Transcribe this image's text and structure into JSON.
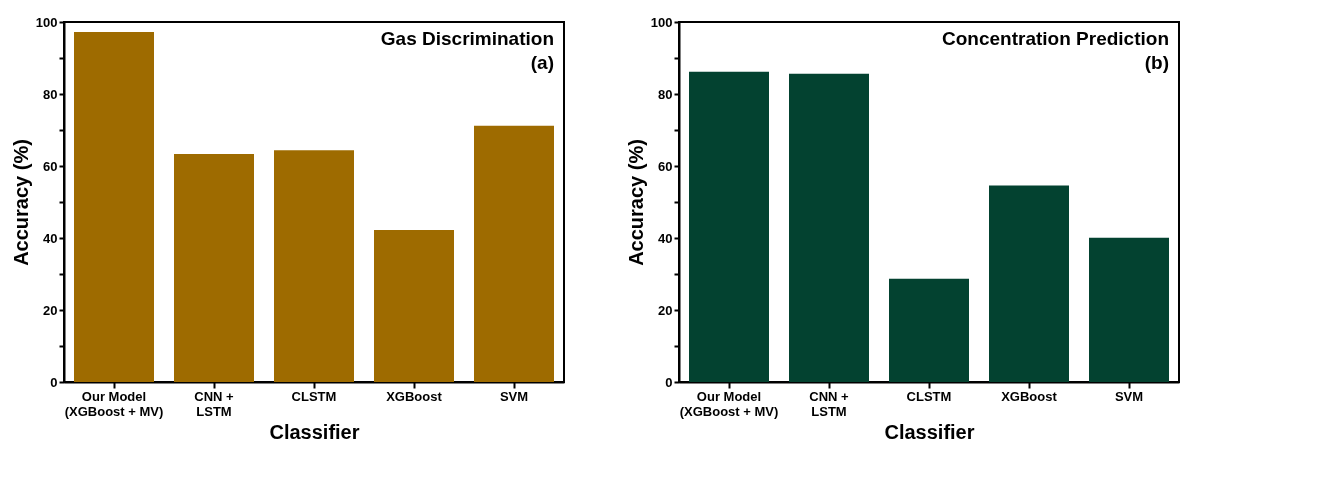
{
  "chart_data": [
    {
      "type": "bar",
      "title": "Gas Discrimination",
      "annotations": [
        "(a)"
      ],
      "xlabel": "Classifier",
      "ylabel": "Accuracy (%)",
      "categories": [
        "Our Model\n(XGBoost + MV)",
        "CNN +\nLSTM",
        "CLSTM",
        "XGBoost",
        "SVM"
      ],
      "values": [
        97.2,
        63.3,
        64.4,
        42.2,
        71.2
      ],
      "color": "#9e6b00",
      "ylim": [
        0,
        100
      ],
      "yticks": [
        0,
        {
          "value": 10,
          "label": null
        },
        20,
        {
          "value": 30,
          "label": null
        },
        40,
        {
          "value": 50,
          "label": null
        },
        60,
        {
          "value": 70,
          "label": null
        },
        80,
        {
          "value": 90,
          "label": null
        },
        100
      ],
      "grid": false
    },
    {
      "type": "bar",
      "title": "Concentration Prediction",
      "annotations": [
        "(b)"
      ],
      "xlabel": "Classifier",
      "ylabel": "Accuracy (%)",
      "categories": [
        "Our Model\n(XGBoost + MV)",
        "CNN +\nLSTM",
        "CLSTM",
        "XGBoost",
        "SVM"
      ],
      "values": [
        86.2,
        85.6,
        28.7,
        54.6,
        40.1
      ],
      "color": "#034230",
      "ylim": [
        0,
        100
      ],
      "yticks": [
        0,
        {
          "value": 10,
          "label": null
        },
        20,
        {
          "value": 30,
          "label": null
        },
        40,
        {
          "value": 50,
          "label": null
        },
        60,
        {
          "value": 70,
          "label": null
        },
        80,
        {
          "value": 90,
          "label": null
        },
        100
      ],
      "grid": false
    }
  ]
}
